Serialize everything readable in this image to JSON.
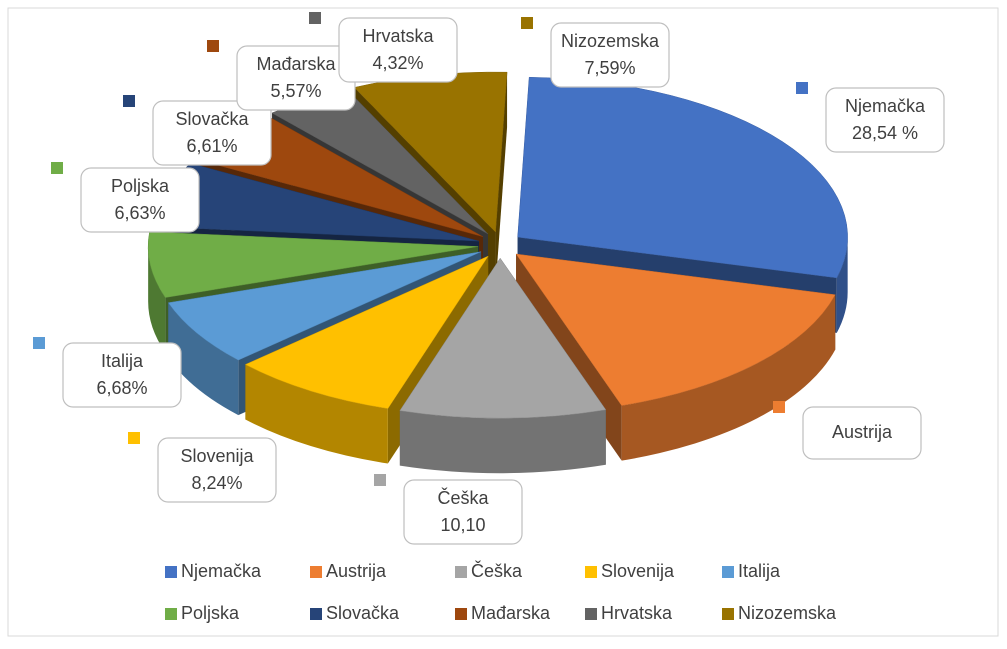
{
  "chart_data": {
    "type": "pie",
    "three_d": true,
    "exploded": true,
    "legend": "bottom",
    "categories": [
      "Njemačka",
      "Austrija",
      "Češka",
      "Slovenija",
      "Italija",
      "Poljska",
      "Slovačka",
      "Mađarska",
      "Hrvatska",
      "Nizozemska"
    ],
    "values": [
      28.54,
      15.72,
      10.1,
      8.24,
      6.68,
      6.63,
      6.61,
      5.57,
      4.32,
      7.59
    ],
    "value_labels": [
      "28,54 %",
      null,
      "10,10",
      "8,24%",
      "6,68%",
      "6,63%",
      "6,61%",
      "5,57%",
      "4,32%",
      "7,59%"
    ],
    "colors": [
      "#4472c4",
      "#ed7d31",
      "#a5a5a5",
      "#ffc000",
      "#5b9bd5",
      "#70ad47",
      "#264478",
      "#9e480e",
      "#636363",
      "#997300"
    ]
  }
}
